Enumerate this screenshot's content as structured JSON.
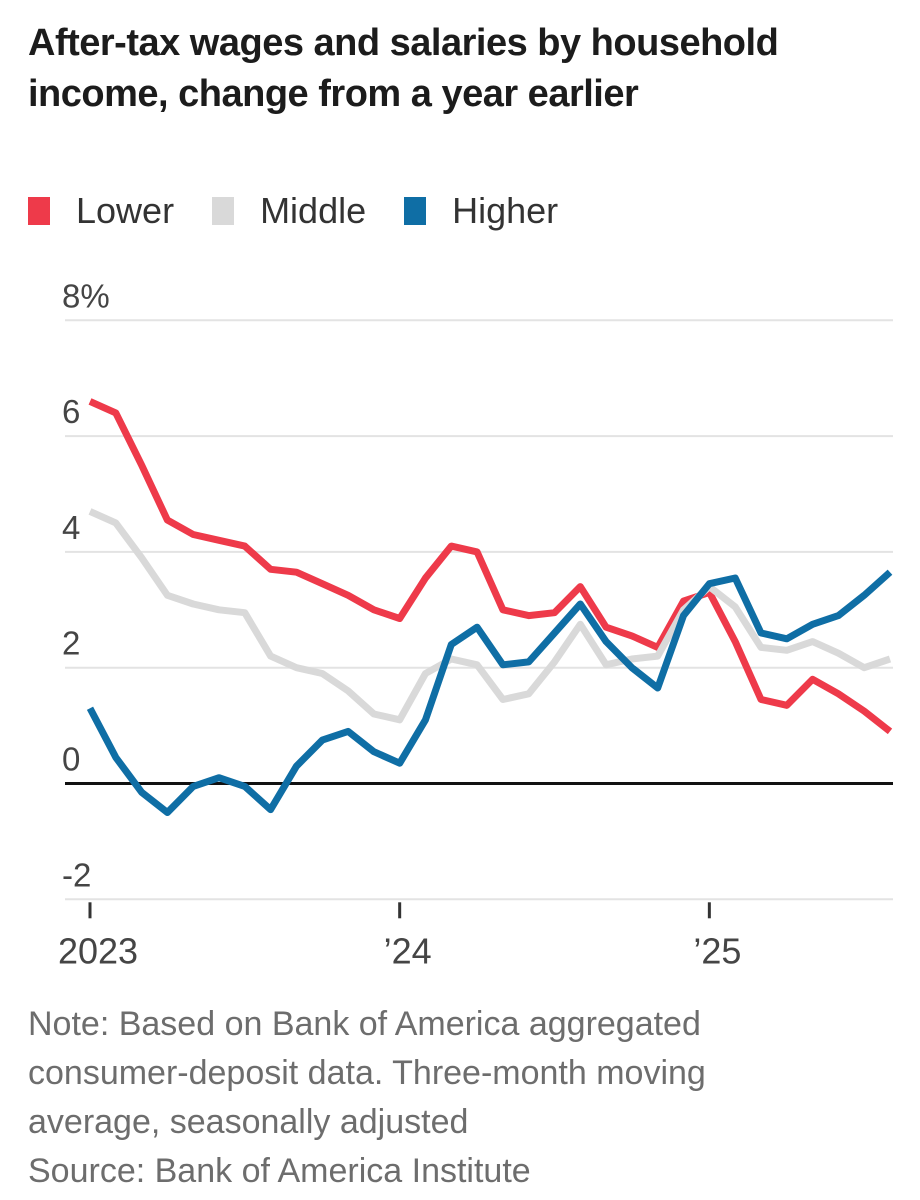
{
  "title": "After-tax wages and salaries by household income, change from a year earlier",
  "legend": {
    "items": [
      {
        "label": "Lower",
        "color": "#ee3a4a"
      },
      {
        "label": "Middle",
        "color": "#d9d9d9"
      },
      {
        "label": "Higher",
        "color": "#0f6ea5"
      }
    ]
  },
  "notes": {
    "note": "Note: Based on Bank of America aggregated consumer-deposit data. Three-month moving average, seasonally adjusted",
    "source": "Source: Bank of America Institute"
  },
  "colors": {
    "grid_line": "#e3e3e3",
    "zero_line": "#111111",
    "tick_mark": "#333333",
    "axis_label": "#454545",
    "title_text": "#1c1c1c",
    "note_text": "#6d6d6d"
  },
  "chart_data": {
    "type": "line",
    "title": "After-tax wages and salaries by household income, change from a year earlier",
    "x_unit": "month",
    "x_start": "2023-01",
    "x_end": "2025-08",
    "points_per_year": 12,
    "grid": true,
    "zero_line": true,
    "legend_position": "top-left",
    "ylim": [
      -2.7,
      8.6
    ],
    "unit_suffix": "%",
    "y_ticks": [
      {
        "value": -2,
        "label": "-2"
      },
      {
        "value": 0,
        "label": "0"
      },
      {
        "value": 2,
        "label": "2"
      },
      {
        "value": 4,
        "label": "4"
      },
      {
        "value": 6,
        "label": "6"
      },
      {
        "value": 8,
        "label": "8%"
      }
    ],
    "x_ticks": [
      {
        "index": 0,
        "label": "2023"
      },
      {
        "index": 12,
        "label": "’24"
      },
      {
        "index": 24,
        "label": "’25"
      }
    ],
    "series": [
      {
        "name": "Lower",
        "color": "#ee3a4a",
        "values": [
          6.6,
          6.4,
          5.5,
          4.55,
          4.3,
          4.2,
          4.1,
          3.7,
          3.65,
          3.45,
          3.25,
          3.0,
          2.85,
          3.55,
          4.1,
          4.0,
          3.0,
          2.9,
          2.95,
          3.4,
          2.7,
          2.55,
          2.35,
          3.15,
          3.3,
          2.45,
          1.45,
          1.35,
          1.8,
          1.55,
          1.25,
          0.9
        ]
      },
      {
        "name": "Middle",
        "color": "#d9d9d9",
        "values": [
          4.7,
          4.5,
          3.9,
          3.25,
          3.1,
          3.0,
          2.95,
          2.2,
          2.0,
          1.9,
          1.6,
          1.2,
          1.1,
          1.9,
          2.15,
          2.05,
          1.45,
          1.55,
          2.1,
          2.75,
          2.05,
          2.15,
          2.2,
          3.0,
          3.4,
          3.05,
          2.35,
          2.3,
          2.45,
          2.25,
          2.0,
          2.15
        ]
      },
      {
        "name": "Higher",
        "color": "#0f6ea5",
        "values": [
          1.3,
          0.45,
          -0.15,
          -0.5,
          -0.05,
          0.1,
          -0.05,
          -0.45,
          0.3,
          0.75,
          0.9,
          0.55,
          0.35,
          1.1,
          2.4,
          2.7,
          2.05,
          2.1,
          2.6,
          3.1,
          2.45,
          2.0,
          1.65,
          2.9,
          3.45,
          3.55,
          2.6,
          2.5,
          2.75,
          2.9,
          3.25,
          3.65
        ]
      }
    ]
  }
}
